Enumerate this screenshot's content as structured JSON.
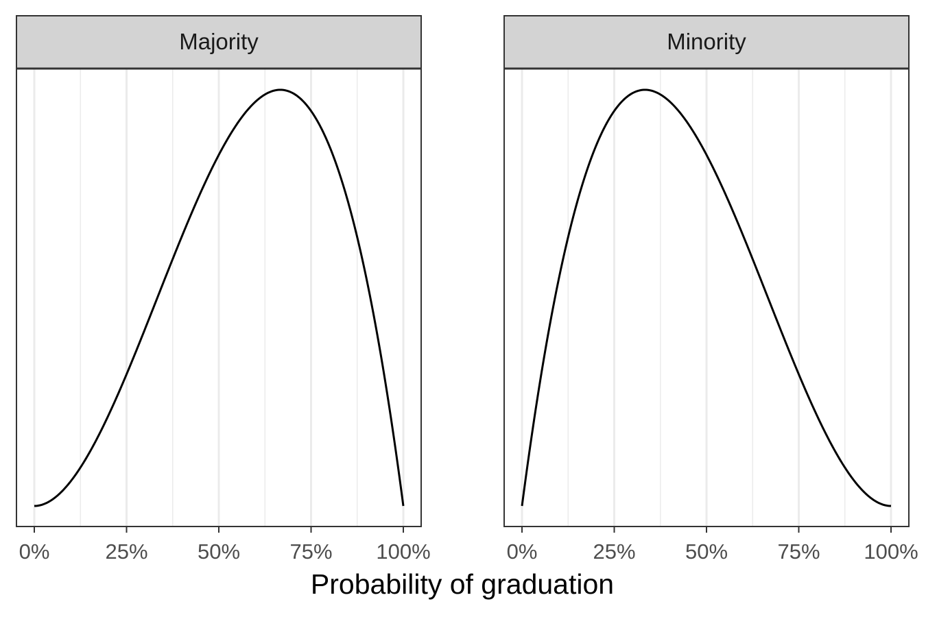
{
  "chart_data": {
    "type": "line",
    "xlabel": "Probability of graduation",
    "ylabel": "",
    "xlim": [
      0,
      1
    ],
    "x_ticks": [
      0,
      0.25,
      0.5,
      0.75,
      1
    ],
    "x_tick_labels": [
      "0%",
      "25%",
      "50%",
      "75%",
      "100%"
    ],
    "y_ticks_shown": false,
    "grid": "vertical",
    "facets": [
      {
        "label": "Majority",
        "curve": "beta-density",
        "alpha": 3,
        "beta": 2,
        "mode": 0.667
      },
      {
        "label": "Minority",
        "curve": "beta-density",
        "alpha": 2,
        "beta": 3,
        "mode": 0.333
      }
    ],
    "colors": {
      "line": "#000000",
      "strip_fill": "#d3d3d3",
      "strip_text": "#1a1a1a",
      "grid": "#ebebeb",
      "panel_border": "#333333",
      "tick_label": "#4d4d4d"
    }
  }
}
